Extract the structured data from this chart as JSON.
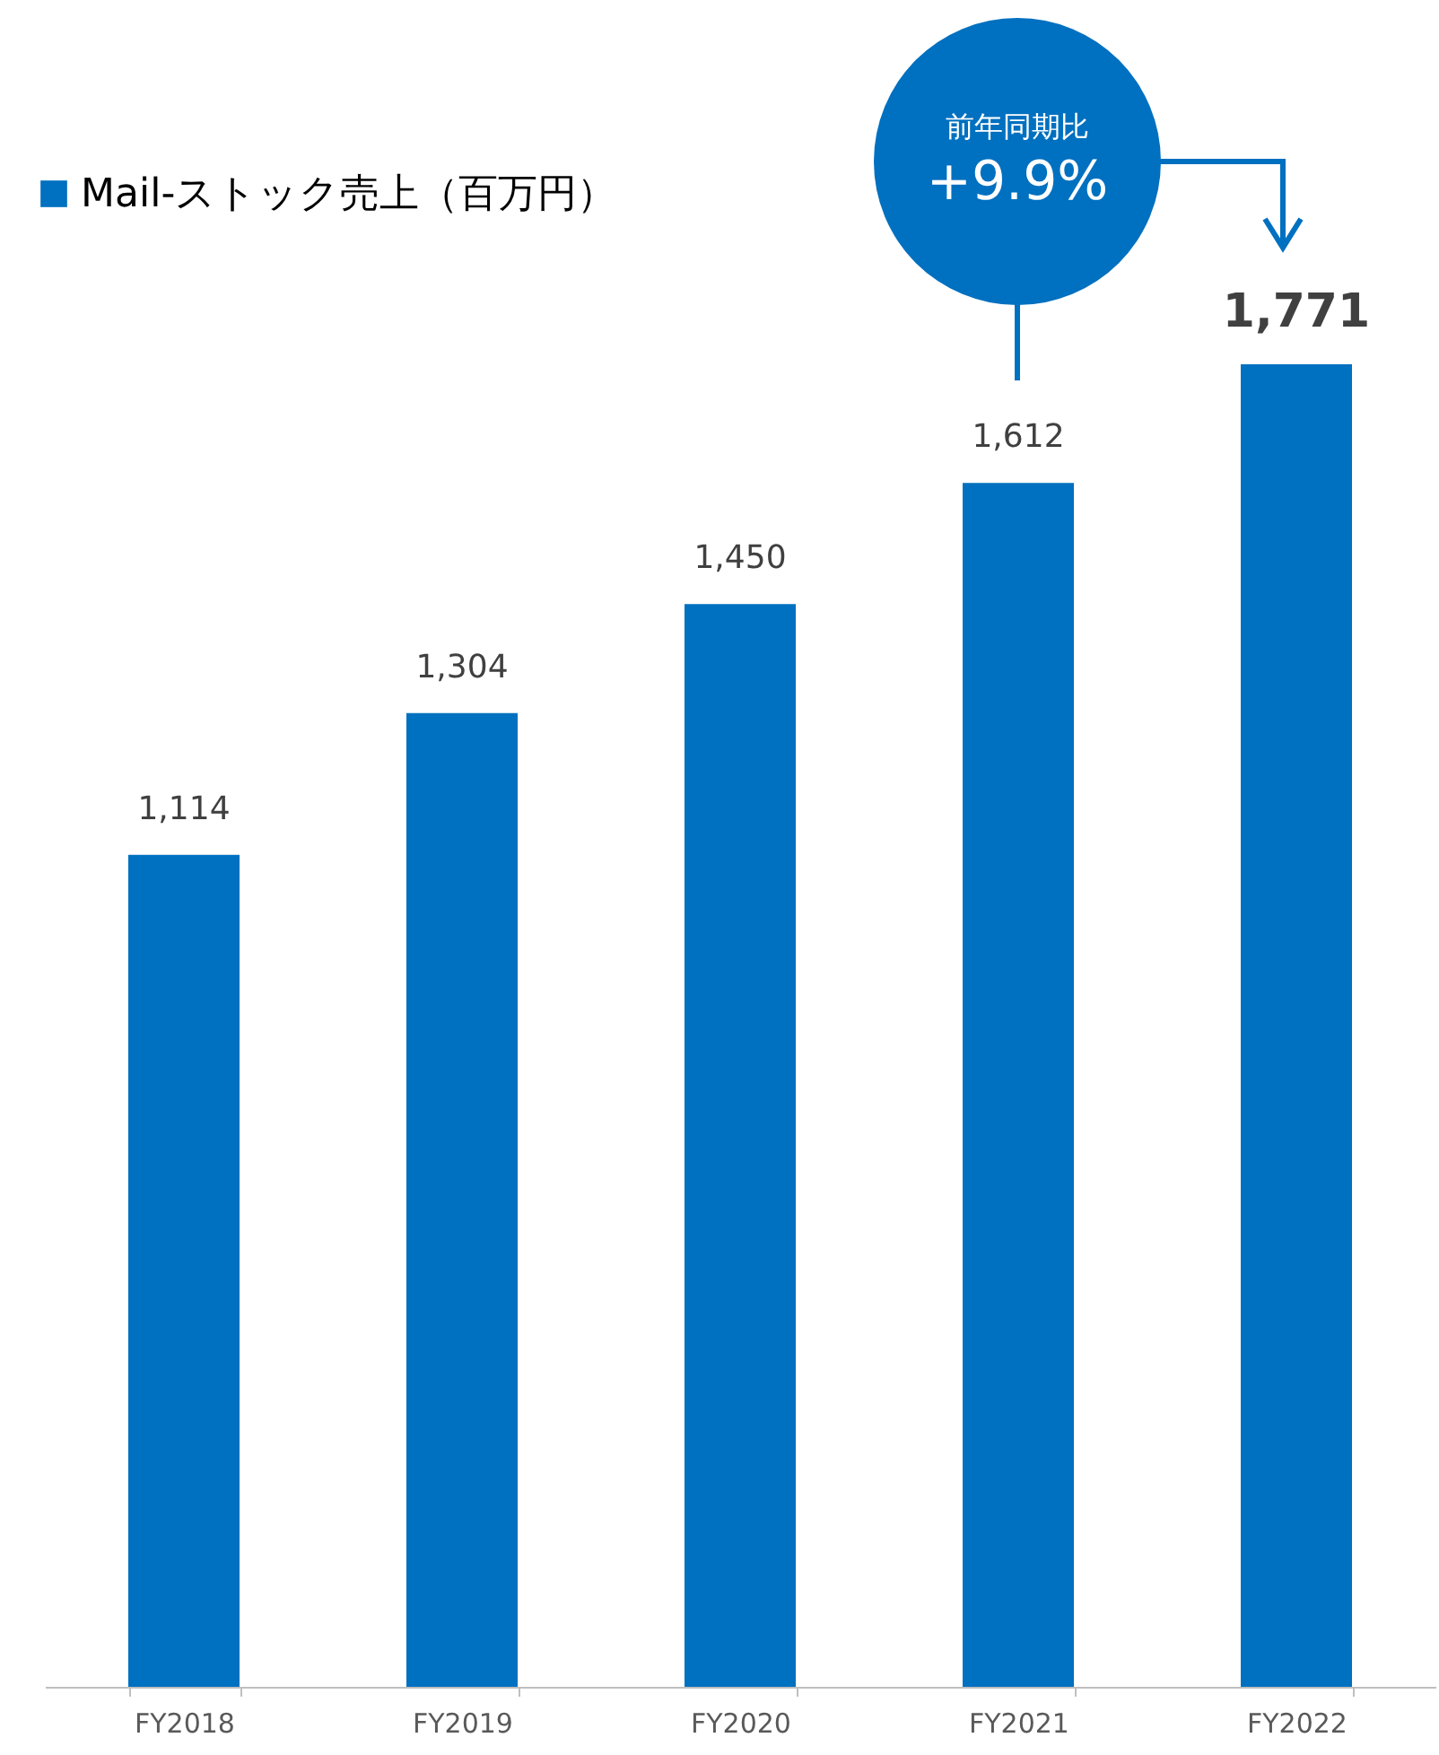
{
  "chart_data": {
    "type": "bar",
    "categories": [
      "FY2018",
      "FY2019",
      "FY2020",
      "FY2021",
      "FY2022"
    ],
    "series": [
      {
        "name": "Mail-ストック売上（百万円）",
        "color": "#0070c0",
        "values": [
          1114,
          1304,
          1450,
          1612,
          1771
        ],
        "value_labels": [
          "1,114",
          "1,304",
          "1,450",
          "1,612",
          "1,771"
        ]
      }
    ],
    "legend": "top left",
    "grid": false,
    "annotations": [
      "前年同期比",
      "+9.9%"
    ]
  }
}
